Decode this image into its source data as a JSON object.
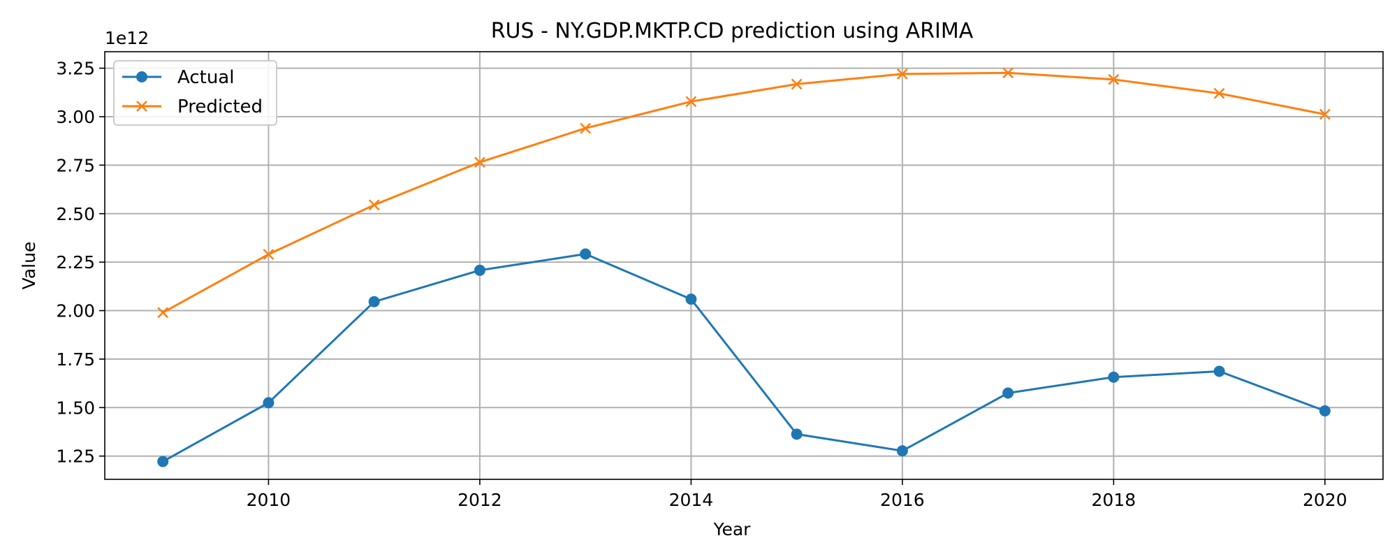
{
  "chart_data": {
    "type": "line",
    "title": "RUS - NY.GDP.MKTP.CD prediction using ARIMA",
    "xlabel": "Year",
    "ylabel": "Value",
    "y_offset_label": "1e12",
    "xlim": [
      2008.45,
      2020.55
    ],
    "ylim": [
      1130000000000.0,
      3335000000000.0
    ],
    "x_ticks": [
      2010,
      2012,
      2014,
      2016,
      2018,
      2020
    ],
    "y_ticks": [
      1.25,
      1.5,
      1.75,
      2.0,
      2.25,
      2.5,
      2.75,
      3.0,
      3.25
    ],
    "y_tick_labels": [
      "1.25",
      "1.50",
      "1.75",
      "2.00",
      "2.25",
      "2.50",
      "2.75",
      "3.00",
      "3.25"
    ],
    "y_tick_scale": 1000000000000.0,
    "grid": true,
    "legend_position": "upper-left",
    "x": [
      2009,
      2010,
      2011,
      2012,
      2013,
      2014,
      2015,
      2016,
      2017,
      2018,
      2019,
      2020
    ],
    "series": [
      {
        "name": "Actual",
        "color": "#1f77b4",
        "marker": "circle",
        "values": [
          1222000000000.0,
          1525000000000.0,
          2046000000000.0,
          2208000000000.0,
          2292000000000.0,
          2059000000000.0,
          1363000000000.0,
          1277000000000.0,
          1575000000000.0,
          1657000000000.0,
          1687000000000.0,
          1483000000000.0
        ]
      },
      {
        "name": "Predicted",
        "color": "#ff7f0e",
        "marker": "x",
        "values": [
          1990000000000.0,
          2290000000000.0,
          2545000000000.0,
          2765000000000.0,
          2940000000000.0,
          3078000000000.0,
          3168000000000.0,
          3220000000000.0,
          3226000000000.0,
          3192000000000.0,
          3120000000000.0,
          3012000000000.0
        ]
      }
    ]
  }
}
